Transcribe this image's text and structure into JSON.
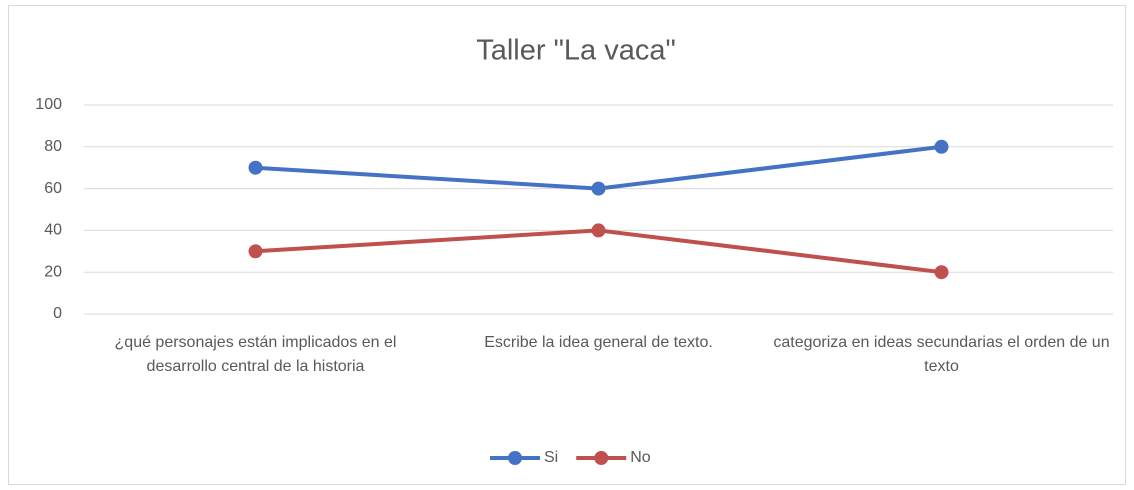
{
  "chart_data": {
    "type": "line",
    "title": "Taller \"La vaca\"",
    "categories": [
      "¿qué personajes están implicados en el desarrollo central de la historia",
      "Escribe la idea general de texto.",
      "categoriza en ideas secundarias el orden de un texto"
    ],
    "series": [
      {
        "name": "Si",
        "color": "#4472c4",
        "values": [
          70,
          60,
          80
        ]
      },
      {
        "name": "No",
        "color": "#c0504d",
        "values": [
          30,
          40,
          20
        ]
      }
    ],
    "ylim": [
      0,
      100
    ],
    "yticks": [
      0,
      20,
      40,
      60,
      80,
      100
    ],
    "grid": true,
    "legend": "bottom"
  }
}
